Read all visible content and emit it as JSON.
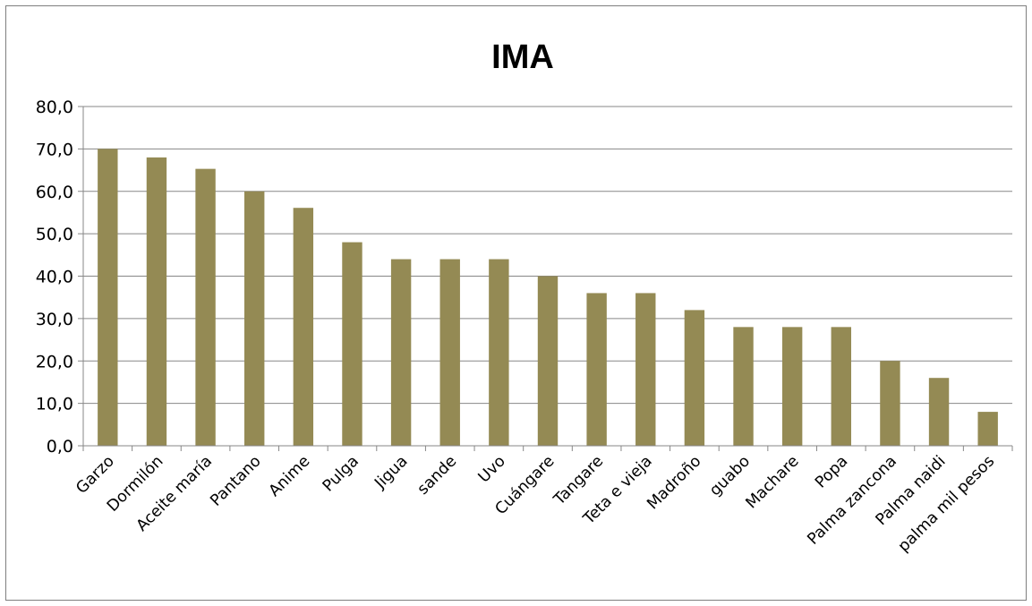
{
  "chart_data": {
    "type": "bar",
    "title": "IMA",
    "xlabel": "",
    "ylabel": "",
    "ylim": [
      0,
      80
    ],
    "y_ticks": [
      "0,0",
      "10,0",
      "20,0",
      "30,0",
      "40,0",
      "50,0",
      "60,0",
      "70,0",
      "80,0"
    ],
    "grid": true,
    "legend": "none",
    "bar_color": "#948a54",
    "categories": [
      "Garzo",
      "Dormilón",
      "Aceite maría",
      "Pantano",
      "Anime",
      "Pulga",
      "Jigua",
      "sande",
      "Uvo",
      "Cuángare",
      "Tangare",
      "Teta e vieja",
      "Madroño",
      "guabo",
      "Machare",
      "Popa",
      "Palma zancona",
      "Palma naidi",
      "palma mil pesos"
    ],
    "values": [
      70,
      68,
      65.3,
      60,
      56.1,
      48,
      44,
      44,
      44,
      40,
      36,
      36,
      32,
      28,
      28,
      28,
      20,
      16,
      8
    ]
  }
}
